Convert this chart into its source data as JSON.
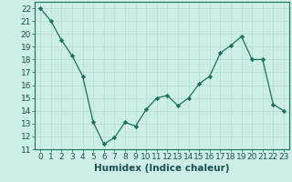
{
  "x": [
    0,
    1,
    2,
    3,
    4,
    5,
    6,
    7,
    8,
    9,
    10,
    11,
    12,
    13,
    14,
    15,
    16,
    17,
    18,
    19,
    20,
    21,
    22,
    23
  ],
  "y": [
    22,
    21,
    19.5,
    18.3,
    16.7,
    13.1,
    11.4,
    11.9,
    13.1,
    12.8,
    14.1,
    15.0,
    15.2,
    14.4,
    15.0,
    16.1,
    16.7,
    18.5,
    19.1,
    19.8,
    18.0,
    18.0,
    14.5,
    14.0
  ],
  "line_color": "#1a7060",
  "marker_color": "#1a7060",
  "bg_color": "#cceee8",
  "grid_color": "#b8d8d0",
  "xlabel": "Humidex (Indice chaleur)",
  "ylim": [
    11,
    22.5
  ],
  "xlim": [
    -0.5,
    23.5
  ],
  "yticks": [
    11,
    12,
    13,
    14,
    15,
    16,
    17,
    18,
    19,
    20,
    21,
    22
  ],
  "xticks": [
    0,
    1,
    2,
    3,
    4,
    5,
    6,
    7,
    8,
    9,
    10,
    11,
    12,
    13,
    14,
    15,
    16,
    17,
    18,
    19,
    20,
    21,
    22,
    23
  ],
  "tick_fontsize": 6.5,
  "xlabel_fontsize": 7.5
}
